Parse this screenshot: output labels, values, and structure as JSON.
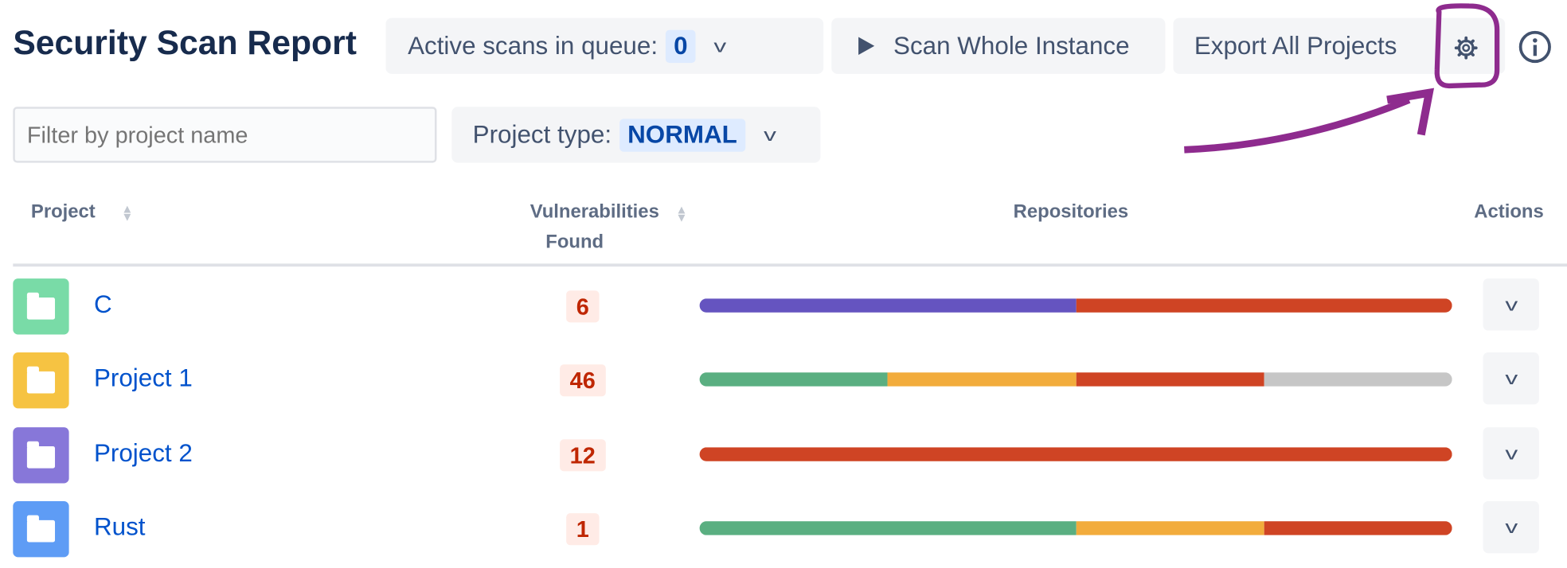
{
  "header": {
    "title": "Security Scan Report",
    "queue_label": "Active scans in queue:",
    "queue_count": "0",
    "scan_label": "Scan Whole Instance",
    "export_label": "Export All Projects",
    "settings_icon": "gear-icon",
    "info_icon": "info-icon",
    "annotation_color": "#8e2b8e"
  },
  "filters": {
    "filter_placeholder": "Filter by project name",
    "filter_value": "",
    "project_type_label": "Project type:",
    "project_type_value": "NORMAL"
  },
  "table": {
    "columns": [
      "Project",
      "Vulnerabilities Found",
      "Repositories",
      "Actions"
    ],
    "col_vuln_line1": "Vulnerabilities",
    "col_vuln_line2": "Found",
    "rows": [
      {
        "name": "C",
        "icon_color": "#79dba7",
        "vulns": "6",
        "segments": [
          {
            "color": "#6554c0",
            "fraction": 0.5
          },
          {
            "color": "#cf4424",
            "fraction": 0.5
          }
        ]
      },
      {
        "name": "Project 1",
        "icon_color": "#f6c342",
        "vulns": "46",
        "segments": [
          {
            "color": "#5aaf81",
            "fraction": 0.25
          },
          {
            "color": "#f2ac3c",
            "fraction": 0.25
          },
          {
            "color": "#cf4424",
            "fraction": 0.25
          },
          {
            "color": "#c6c6c6",
            "fraction": 0.25
          }
        ]
      },
      {
        "name": "Project 2",
        "icon_color": "#8777d9",
        "vulns": "12",
        "segments": [
          {
            "color": "#cf4424",
            "fraction": 1
          }
        ]
      },
      {
        "name": "Rust",
        "icon_color": "#5e9cf5",
        "vulns": "1",
        "segments": [
          {
            "color": "#5aaf81",
            "fraction": 0.5
          },
          {
            "color": "#f2ac3c",
            "fraction": 0.25
          },
          {
            "color": "#cf4424",
            "fraction": 0.25
          }
        ]
      }
    ]
  }
}
